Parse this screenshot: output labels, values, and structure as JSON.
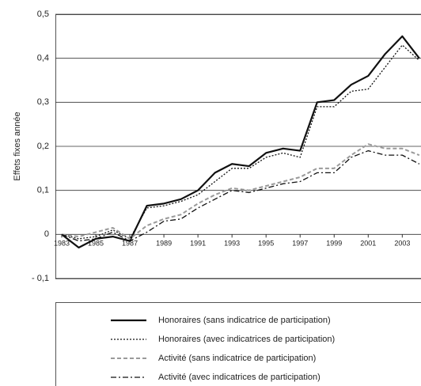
{
  "chart_data": {
    "type": "line",
    "y_label": "Effets fixes année",
    "x": [
      1983,
      1984,
      1985,
      1986,
      1987,
      1988,
      1989,
      1990,
      1991,
      1992,
      1993,
      1994,
      1995,
      1996,
      1997,
      1998,
      1999,
      2000,
      2001,
      2002,
      2003,
      2004
    ],
    "xlim": [
      1983,
      2004.1
    ],
    "xticks": [
      1983,
      1985,
      1987,
      1989,
      1991,
      1993,
      1995,
      1997,
      1999,
      2001,
      2003
    ],
    "ylim": [
      -0.1,
      0.5
    ],
    "yticks": [
      {
        "value": -0.1,
        "label": "- 0,1"
      },
      0,
      {
        "value": 0.1,
        "label": "0,1"
      },
      {
        "value": 0.2,
        "label": "0,2"
      },
      {
        "value": 0.3,
        "label": "0,3"
      },
      {
        "value": 0.4,
        "label": "0,4"
      },
      {
        "value": 0.5,
        "label": "0,5"
      }
    ],
    "grid": true,
    "series": [
      {
        "name": "Honoraires (sans indicatrice de participation)",
        "color": "#111111",
        "dash": "solid",
        "values": [
          0,
          -0.03,
          -0.01,
          -0.005,
          -0.015,
          0.065,
          0.07,
          0.08,
          0.1,
          0.14,
          0.16,
          0.155,
          0.185,
          0.195,
          0.19,
          0.3,
          0.305,
          0.34,
          0.36,
          0.41,
          0.45,
          0.4
        ]
      },
      {
        "name": "Honoraires (avec indicatrices de participation)",
        "color": "#111111",
        "dash": "dotted",
        "values": [
          0,
          -0.01,
          -0.005,
          0.01,
          -0.01,
          0.06,
          0.065,
          0.075,
          0.09,
          0.12,
          0.15,
          0.15,
          0.175,
          0.185,
          0.175,
          0.29,
          0.29,
          0.325,
          0.33,
          0.38,
          0.43,
          0.395
        ]
      },
      {
        "name": "Activité (sans indicatrice de participation)",
        "color": "#9a9a9a",
        "dash": "dashed",
        "values": [
          0,
          -0.005,
          0.005,
          0.015,
          -0.01,
          0.02,
          0.035,
          0.045,
          0.07,
          0.09,
          0.105,
          0.1,
          0.11,
          0.12,
          0.13,
          0.15,
          0.15,
          0.18,
          0.205,
          0.195,
          0.195,
          0.18
        ]
      },
      {
        "name": "Activité (avec indicatrices de participation)",
        "color": "#111111",
        "dash": "dashdot",
        "values": [
          0,
          -0.015,
          -0.01,
          0.005,
          -0.015,
          0.005,
          0.03,
          0.035,
          0.06,
          0.08,
          0.1,
          0.095,
          0.105,
          0.115,
          0.12,
          0.14,
          0.14,
          0.175,
          0.19,
          0.18,
          0.18,
          0.16
        ]
      }
    ]
  }
}
